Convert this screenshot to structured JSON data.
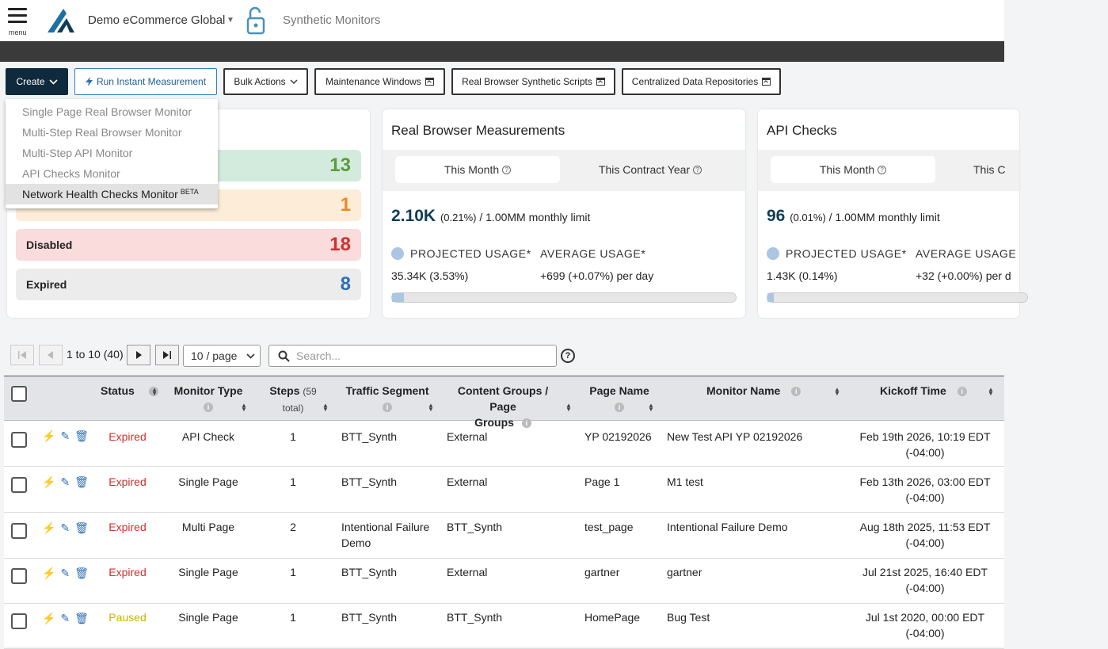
{
  "header": {
    "menu_label": "menu",
    "brand": "Demo eCommerce Global",
    "app_title": "Synthetic Monitors"
  },
  "toolbar": {
    "create_label": "Create",
    "run_label": "Run Instant Measurement",
    "bulk_label": "Bulk Actions",
    "maintenance_label": "Maintenance Windows",
    "scripts_label": "Real Browser Synthetic Scripts",
    "repos_label": "Centralized Data Repositories"
  },
  "create_menu": {
    "items": [
      {
        "label": "Single Page Real Browser Monitor",
        "badge": ""
      },
      {
        "label": "Multi-Step Real Browser Monitor",
        "badge": ""
      },
      {
        "label": "Multi-Step API Monitor",
        "badge": ""
      },
      {
        "label": "API Checks Monitor",
        "badge": ""
      },
      {
        "label": "Network Health Checks Monitor",
        "badge": "BETA"
      }
    ],
    "highlighted_index": 4
  },
  "status_card": {
    "rows": [
      {
        "label": "",
        "count": "13",
        "color": "#5a9b3e"
      },
      {
        "label": "",
        "count": "1",
        "color": "#e88c1f"
      },
      {
        "label": "Disabled",
        "count": "18",
        "color": "#d0312d"
      },
      {
        "label": "Expired",
        "count": "8",
        "color": "#2f6fb5"
      }
    ]
  },
  "rbm_card": {
    "title": "Real Browser Measurements",
    "tab_month": "This Month",
    "tab_contract": "This Contract Year",
    "usage_big": "2.10K",
    "usage_pct": "(0.21%)",
    "usage_limit": "/ 1.00MM monthly limit",
    "projected_label": "PROJECTED USAGE*",
    "average_label": "AVERAGE USAGE*",
    "projected_value": "35.34K (3.53%)",
    "average_value": "+699 (+0.07%) per day",
    "progress_fraction": 0.0353
  },
  "api_card": {
    "title": "API Checks",
    "tab_month": "This Month",
    "tab_contract": "This C",
    "usage_big": "96",
    "usage_pct": "(0.01%)",
    "usage_limit": "/ 1.00MM monthly limit",
    "projected_label": "PROJECTED USAGE*",
    "average_label": "AVERAGE USAGE",
    "projected_value": "1.43K (0.14%)",
    "average_value": "+32 (+0.00%) per d",
    "progress_fraction": 0.0014
  },
  "pager": {
    "range_text": "1 to 10 (40)",
    "page_size": "10 / page",
    "search_placeholder": "Search..."
  },
  "table": {
    "headers": {
      "status": "Status",
      "monitor_type": "Monitor Type",
      "steps": "Steps",
      "steps_total": "(59",
      "steps_total2": "total)",
      "traffic_segment": "Traffic Segment",
      "content_groups": "Content Groups / Page",
      "content_groups2": "Groups",
      "page_name": "Page Name",
      "monitor_name": "Monitor Name",
      "kickoff_time": "Kickoff Time"
    },
    "rows": [
      {
        "status": "Expired",
        "type": "API Check",
        "steps": "1",
        "segment": "BTT_Synth",
        "segment2": "",
        "groups": "External",
        "page": "YP 02192026",
        "name": "New Test API YP 02192026",
        "kickoff": "Feb 19th 2026, 10:19 EDT",
        "tz": "(-04:00)"
      },
      {
        "status": "Expired",
        "type": "Single Page",
        "steps": "1",
        "segment": "BTT_Synth",
        "segment2": "",
        "groups": "External",
        "page": "Page 1",
        "name": "M1 test",
        "kickoff": "Feb 13th 2026, 03:00 EDT",
        "tz": "(-04:00)"
      },
      {
        "status": "Expired",
        "type": "Multi Page",
        "steps": "2",
        "segment": "Intentional Failure",
        "segment2": "Demo",
        "groups": "BTT_Synth",
        "page": "test_page",
        "name": "Intentional Failure Demo",
        "kickoff": "Aug 18th 2025, 11:53 EDT",
        "tz": "(-04:00)"
      },
      {
        "status": "Expired",
        "type": "Single Page",
        "steps": "1",
        "segment": "BTT_Synth",
        "segment2": "",
        "groups": "External",
        "page": "gartner",
        "name": "gartner",
        "kickoff": "Jul 21st 2025, 16:40 EDT",
        "tz": "(-04:00)"
      },
      {
        "status": "Paused",
        "type": "Single Page",
        "steps": "1",
        "segment": "BTT_Synth",
        "segment2": "",
        "groups": "BTT_Synth",
        "page": "HomePage",
        "name": "Bug Test",
        "kickoff": "Jul 1st 2020, 00:00 EDT",
        "tz": "(-04:00)"
      }
    ]
  },
  "colors": {
    "brand_dark": "#0f2a3d",
    "link_blue": "#2f6fb5",
    "expired_red": "#d0312d",
    "paused_yellow": "#c5b400"
  }
}
